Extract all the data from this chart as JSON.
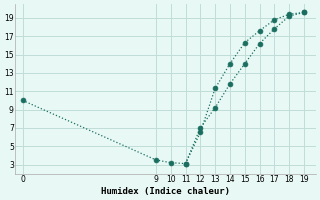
{
  "xlabel": "Humidex (Indice chaleur)",
  "background_color": "#e8f8f4",
  "grid_color": "#c0ddd8",
  "line_color": "#1a6e60",
  "x_line1": [
    0,
    9,
    10,
    11,
    12,
    13,
    14,
    15,
    16,
    17,
    18,
    19
  ],
  "y_line1": [
    10.0,
    3.5,
    3.2,
    3.1,
    6.5,
    11.3,
    14.0,
    16.3,
    17.6,
    18.8,
    19.4,
    19.6
  ],
  "x_line2": [
    11,
    12,
    13,
    14,
    15,
    16,
    17,
    18,
    19
  ],
  "y_line2": [
    3.1,
    7.0,
    9.2,
    11.8,
    14.0,
    16.2,
    17.8,
    19.2,
    19.6
  ],
  "xlim": [
    -0.5,
    19.8
  ],
  "ylim": [
    2.0,
    20.5
  ],
  "xticks": [
    0,
    9,
    10,
    11,
    12,
    13,
    14,
    15,
    16,
    17,
    18,
    19
  ],
  "yticks": [
    3,
    5,
    7,
    9,
    11,
    13,
    15,
    17,
    19
  ],
  "marker_size": 3.5,
  "linewidth": 0.9
}
